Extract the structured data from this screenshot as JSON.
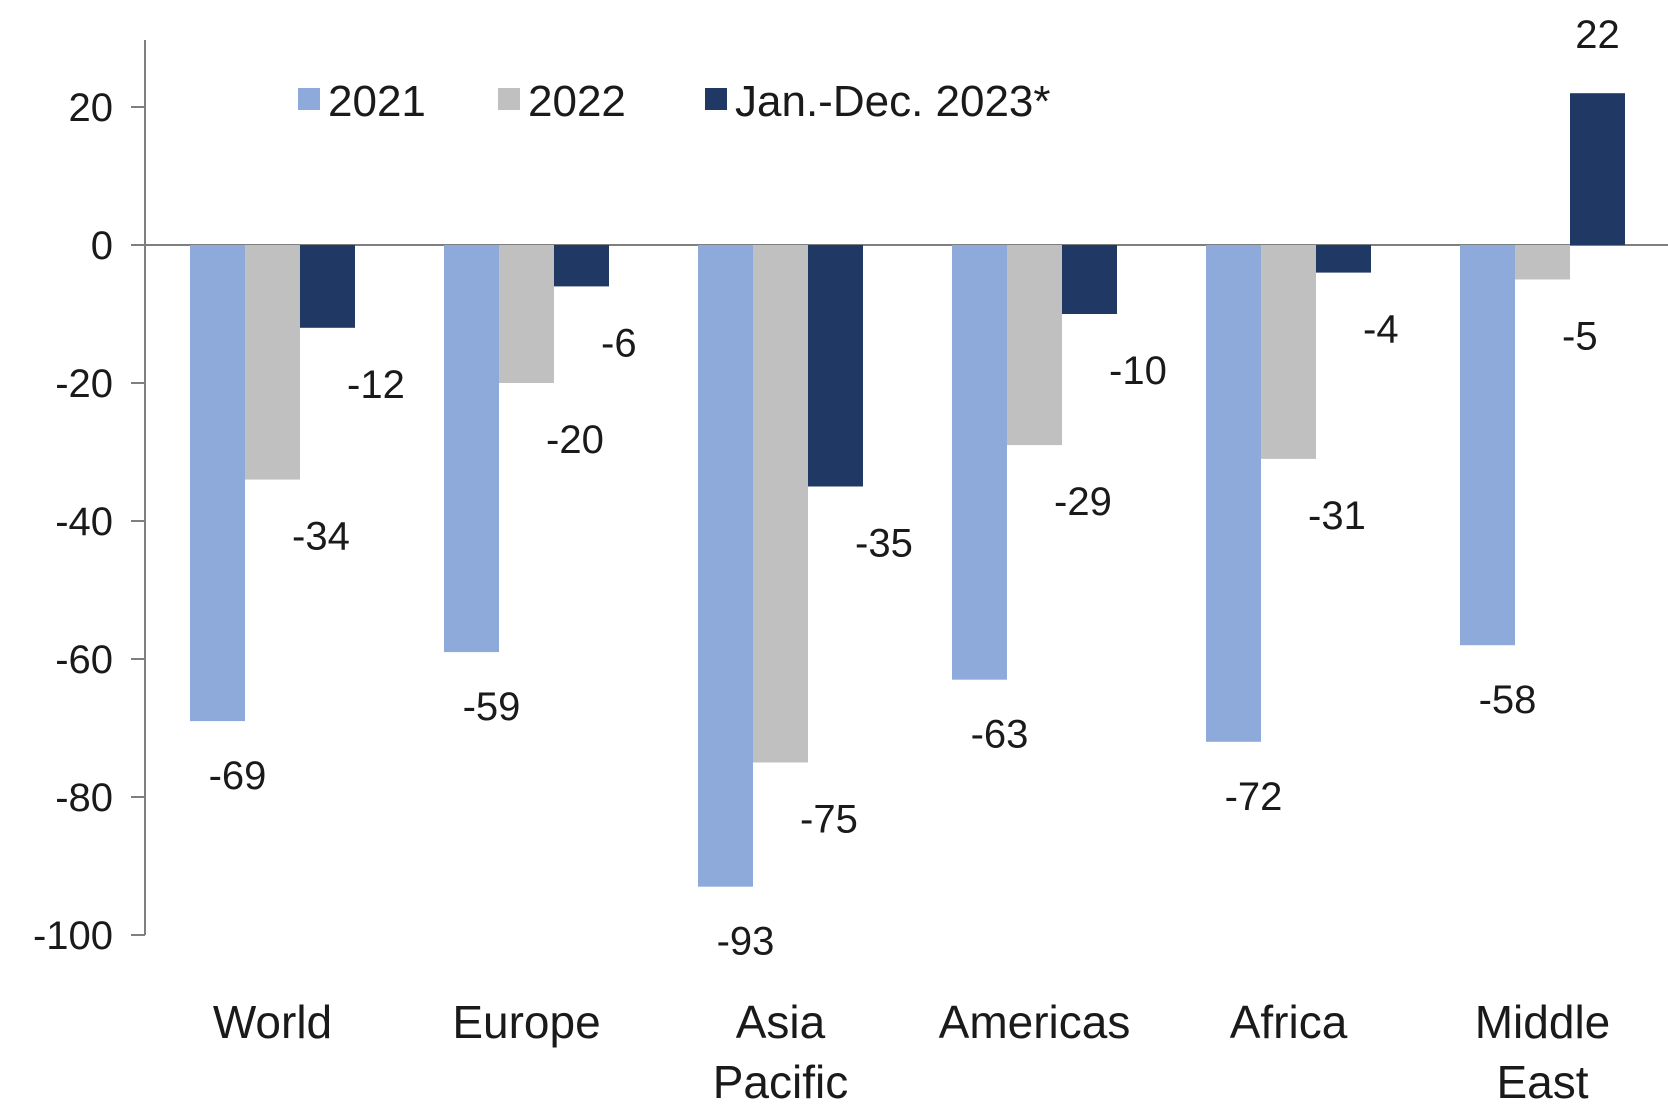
{
  "chart_data": {
    "type": "bar",
    "title": "",
    "xlabel": "",
    "ylabel": "",
    "ylim": [
      -100,
      30
    ],
    "yticks": [
      20,
      0,
      -20,
      -40,
      -60,
      -80,
      -100
    ],
    "grid": false,
    "legend_position": "top",
    "categories": [
      [
        "World"
      ],
      [
        "Europe"
      ],
      [
        "Asia",
        "Pacific"
      ],
      [
        "Americas"
      ],
      [
        "Africa"
      ],
      [
        "Middle",
        "East"
      ]
    ],
    "series": [
      {
        "name": "2021",
        "color": "#8eaadb",
        "values": [
          -69,
          -59,
          -93,
          -63,
          -72,
          -58
        ]
      },
      {
        "name": "2022",
        "color": "#c0c0c0",
        "values": [
          -34,
          -20,
          -75,
          -29,
          -31,
          -5
        ]
      },
      {
        "name": "Jan.-Dec. 2023*",
        "color": "#1f3864",
        "values": [
          -12,
          -6,
          -35,
          -10,
          -4,
          22
        ]
      }
    ]
  }
}
